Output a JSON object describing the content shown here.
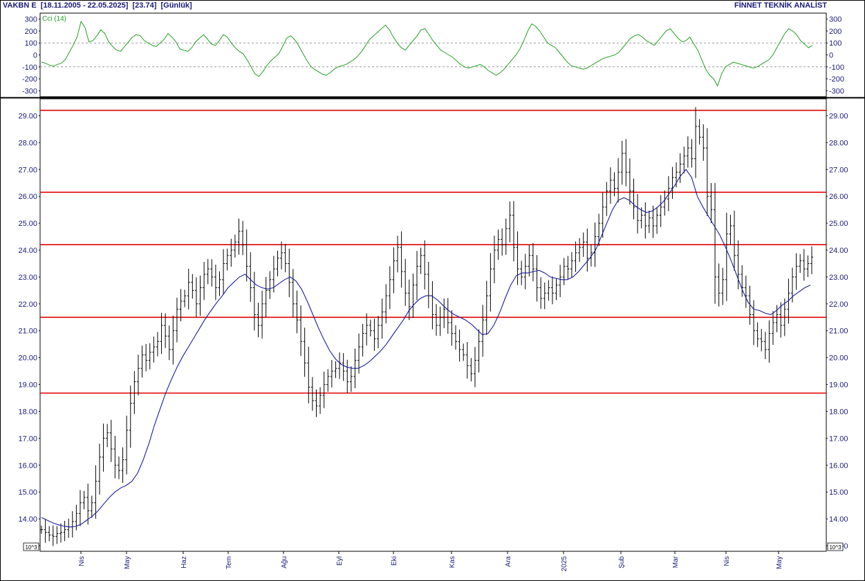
{
  "header": {
    "title": "VAKBN E  [18.11.2005 - 22.05.2025]  [23.74]  [Günlük]",
    "brand": "FİNNET TEKNİK ANALİST"
  },
  "colors": {
    "price_bars": "#000000",
    "moving_average": "#1a1aa0",
    "cci_line": "#22a022",
    "levels": "#e00000",
    "axis_text": "#1a1a7a"
  },
  "chart_data": [
    {
      "type": "line",
      "title": "Cci (14)",
      "ylim": [
        -350,
        350
      ],
      "yticks": [
        300,
        200,
        100,
        0,
        -100,
        -200,
        -300
      ],
      "reference_lines": [
        100,
        -100
      ],
      "grid": false,
      "series": [
        {
          "name": "Cci (14)",
          "values": [
            -60,
            -70,
            -85,
            -95,
            -80,
            -70,
            -40,
            20,
            80,
            150,
            280,
            230,
            110,
            120,
            160,
            210,
            180,
            110,
            70,
            40,
            30,
            70,
            110,
            150,
            170,
            160,
            120,
            100,
            80,
            70,
            100,
            130,
            180,
            150,
            110,
            50,
            40,
            30,
            60,
            110,
            140,
            170,
            130,
            90,
            80,
            120,
            170,
            150,
            100,
            60,
            30,
            10,
            -40,
            -100,
            -160,
            -180,
            -140,
            -90,
            -50,
            -20,
            10,
            70,
            140,
            160,
            130,
            80,
            20,
            -40,
            -90,
            -120,
            -140,
            -160,
            -170,
            -150,
            -120,
            -100,
            -90,
            -80,
            -60,
            -40,
            -10,
            30,
            80,
            130,
            160,
            190,
            220,
            250,
            210,
            150,
            100,
            60,
            40,
            80,
            120,
            160,
            210,
            220,
            170,
            120,
            80,
            40,
            20,
            0,
            -20,
            -50,
            -80,
            -100,
            -110,
            -100,
            -90,
            -80,
            -100,
            -130,
            -150,
            -170,
            -150,
            -120,
            -80,
            -40,
            0,
            50,
            120,
            200,
            260,
            240,
            200,
            150,
            100,
            80,
            60,
            20,
            -20,
            -60,
            -90,
            -100,
            -110,
            -120,
            -110,
            -90,
            -70,
            -50,
            -30,
            -20,
            -10,
            0,
            20,
            60,
            100,
            140,
            160,
            170,
            150,
            120,
            100,
            80,
            120,
            160,
            200,
            220,
            180,
            140,
            110,
            120,
            150,
            90,
            40,
            -40,
            -120,
            -170,
            -200,
            -260,
            -160,
            -100,
            -80,
            -60,
            -70,
            -80,
            -90,
            -100,
            -110,
            -100,
            -80,
            -60,
            -40,
            0,
            60,
            120,
            180,
            220,
            200,
            170,
            120,
            90,
            60,
            80
          ]
        }
      ]
    },
    {
      "type": "bar",
      "subtype": "ohlc",
      "ylim": [
        13.0,
        29.5
      ],
      "yticks": [
        29.0,
        28.0,
        27.0,
        26.0,
        25.0,
        24.0,
        23.0,
        22.0,
        21.0,
        20.0,
        19.0,
        18.0,
        17.0,
        16.0,
        15.0,
        14.0,
        13.0
      ],
      "x_labels": [
        "Nis",
        "May",
        "Haz",
        "Tem",
        "Ağu",
        "Eyl",
        "Eki",
        "Kas",
        "Ara",
        "2025",
        "Şub",
        "Mar",
        "Nis",
        "May"
      ],
      "y_multiplier_label": "10^3",
      "horizontal_levels": [
        29.2,
        26.15,
        24.2,
        21.5,
        18.68
      ],
      "grid": false,
      "series": [
        {
          "name": "Close",
          "values": [
            13.6,
            13.5,
            13.4,
            13.35,
            13.45,
            13.5,
            13.6,
            13.7,
            13.9,
            14.2,
            14.6,
            14.8,
            14.3,
            14.6,
            15.4,
            16.3,
            17.0,
            17.2,
            16.6,
            16.0,
            15.8,
            16.2,
            17.3,
            18.3,
            19.1,
            19.6,
            20.1,
            19.9,
            20.2,
            20.4,
            20.6,
            21.2,
            20.8,
            20.3,
            21.0,
            21.8,
            22.1,
            22.3,
            22.8,
            22.5,
            22.0,
            22.6,
            23.1,
            23.3,
            23.0,
            22.6,
            22.9,
            23.5,
            23.8,
            24.0,
            24.3,
            24.7,
            24.2,
            23.4,
            22.6,
            21.6,
            21.2,
            22.0,
            22.5,
            22.9,
            23.3,
            23.7,
            23.9,
            23.5,
            22.8,
            22.0,
            21.4,
            20.6,
            19.8,
            18.9,
            18.4,
            18.2,
            18.6,
            19.0,
            19.3,
            19.5,
            19.6,
            19.8,
            19.5,
            19.1,
            19.3,
            19.9,
            20.4,
            20.9,
            21.2,
            21.0,
            20.7,
            21.2,
            21.7,
            22.3,
            22.9,
            23.6,
            24.1,
            23.2,
            22.4,
            21.9,
            22.7,
            23.4,
            23.8,
            23.1,
            22.3,
            21.6,
            21.2,
            21.5,
            21.8,
            21.3,
            20.9,
            20.6,
            20.3,
            20.1,
            19.7,
            19.4,
            19.9,
            20.6,
            21.4,
            22.3,
            23.3,
            24.0,
            24.4,
            24.2,
            24.8,
            25.3,
            24.1,
            23.3,
            23.0,
            23.4,
            23.8,
            23.3,
            22.6,
            22.2,
            22.4,
            22.6,
            22.4,
            22.7,
            23.0,
            23.4,
            23.3,
            23.6,
            23.9,
            24.1,
            24.3,
            23.7,
            23.9,
            24.5,
            25.0,
            25.6,
            26.2,
            26.6,
            26.3,
            26.9,
            27.6,
            26.9,
            26.2,
            25.6,
            25.1,
            25.3,
            24.9,
            25.2,
            24.9,
            25.3,
            25.6,
            25.9,
            26.3,
            26.7,
            26.9,
            27.2,
            27.5,
            27.8,
            27.4,
            28.6,
            28.2,
            27.8,
            26.0,
            25.5,
            23.0,
            22.4,
            22.9,
            24.6,
            24.9,
            23.8,
            23.1,
            22.6,
            22.3,
            21.6,
            21.0,
            20.7,
            20.6,
            20.3,
            20.9,
            21.3,
            21.6,
            21.2,
            21.8,
            22.4,
            23.0,
            23.4,
            23.6,
            23.3,
            23.5,
            23.74
          ]
        },
        {
          "name": "Moving Average",
          "values": [
            14.05,
            13.95,
            13.85,
            13.78,
            13.73,
            13.7,
            13.72,
            13.8,
            13.95,
            14.1,
            14.3,
            14.55,
            14.8,
            15.0,
            15.15,
            15.25,
            15.4,
            15.7,
            16.2,
            16.8,
            17.5,
            18.1,
            18.7,
            19.2,
            19.65,
            20.05,
            20.4,
            20.75,
            21.1,
            21.45,
            21.75,
            22.05,
            22.3,
            22.6,
            22.8,
            23.0,
            23.1,
            22.9,
            22.7,
            22.6,
            22.55,
            22.6,
            22.75,
            22.9,
            23.0,
            22.85,
            22.55,
            22.1,
            21.6,
            21.1,
            20.65,
            20.25,
            19.95,
            19.75,
            19.65,
            19.6,
            19.6,
            19.7,
            19.85,
            20.05,
            20.25,
            20.5,
            20.8,
            21.1,
            21.4,
            21.75,
            22.0,
            22.2,
            22.3,
            22.3,
            22.15,
            21.95,
            21.75,
            21.6,
            21.5,
            21.4,
            21.25,
            21.05,
            20.85,
            20.9,
            21.2,
            21.65,
            22.2,
            22.7,
            23.05,
            23.15,
            23.15,
            23.2,
            23.25,
            23.15,
            23.0,
            22.95,
            22.9,
            22.9,
            23.0,
            23.2,
            23.45,
            23.7,
            24.0,
            24.5,
            25.0,
            25.5,
            25.85,
            25.95,
            25.85,
            25.65,
            25.5,
            25.4,
            25.45,
            25.6,
            25.8,
            26.1,
            26.4,
            26.75,
            27.0,
            26.7,
            26.0,
            25.6,
            25.25,
            24.9,
            24.55,
            24.1,
            23.6,
            23.05,
            22.5,
            22.05,
            21.8,
            21.75,
            21.65,
            21.6,
            21.75,
            21.95,
            22.1,
            22.3,
            22.45,
            22.6,
            22.7
          ]
        }
      ]
    }
  ]
}
